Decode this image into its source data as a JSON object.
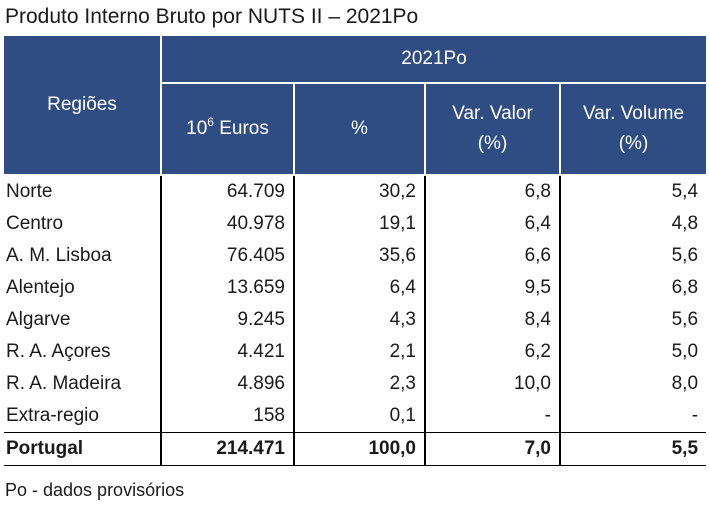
{
  "title": "Produto Interno Bruto por NUTS II – 2021Po",
  "header": {
    "regions": "Regiões",
    "year": "2021Po",
    "col_euros_prefix": "10",
    "col_euros_sup": "6",
    "col_euros_suffix": " Euros",
    "col_pct": "%",
    "col_var_valor_1": "Var. Valor",
    "col_var_valor_2": "(%)",
    "col_var_volume_1": "Var. Volume",
    "col_var_volume_2": "(%)"
  },
  "rows": [
    {
      "region": "Norte",
      "euros": "64.709",
      "pct": "30,2",
      "var_valor": "6,8",
      "var_volume": "5,4"
    },
    {
      "region": "Centro",
      "euros": "40.978",
      "pct": "19,1",
      "var_valor": "6,4",
      "var_volume": "4,8"
    },
    {
      "region": "A. M. Lisboa",
      "euros": "76.405",
      "pct": "35,6",
      "var_valor": "6,6",
      "var_volume": "5,6"
    },
    {
      "region": "Alentejo",
      "euros": "13.659",
      "pct": "6,4",
      "var_valor": "9,5",
      "var_volume": "6,8"
    },
    {
      "region": "Algarve",
      "euros": "9.245",
      "pct": "4,3",
      "var_valor": "8,4",
      "var_volume": "5,6"
    },
    {
      "region": "R. A. Açores",
      "euros": "4.421",
      "pct": "2,1",
      "var_valor": "6,2",
      "var_volume": "5,0"
    },
    {
      "region": "R. A. Madeira",
      "euros": "4.896",
      "pct": "2,3",
      "var_valor": "10,0",
      "var_volume": "8,0"
    },
    {
      "region": "Extra-regio",
      "euros": "158",
      "pct": "0,1",
      "var_valor": "-",
      "var_volume": "-"
    }
  ],
  "total": {
    "region": "Portugal",
    "euros": "214.471",
    "pct": "100,0",
    "var_valor": "7,0",
    "var_volume": "5,5"
  },
  "note": "Po - dados provisórios",
  "colors": {
    "header_bg": "#2f4d82",
    "header_text": "#ffffff",
    "text": "#1a1a1a"
  }
}
